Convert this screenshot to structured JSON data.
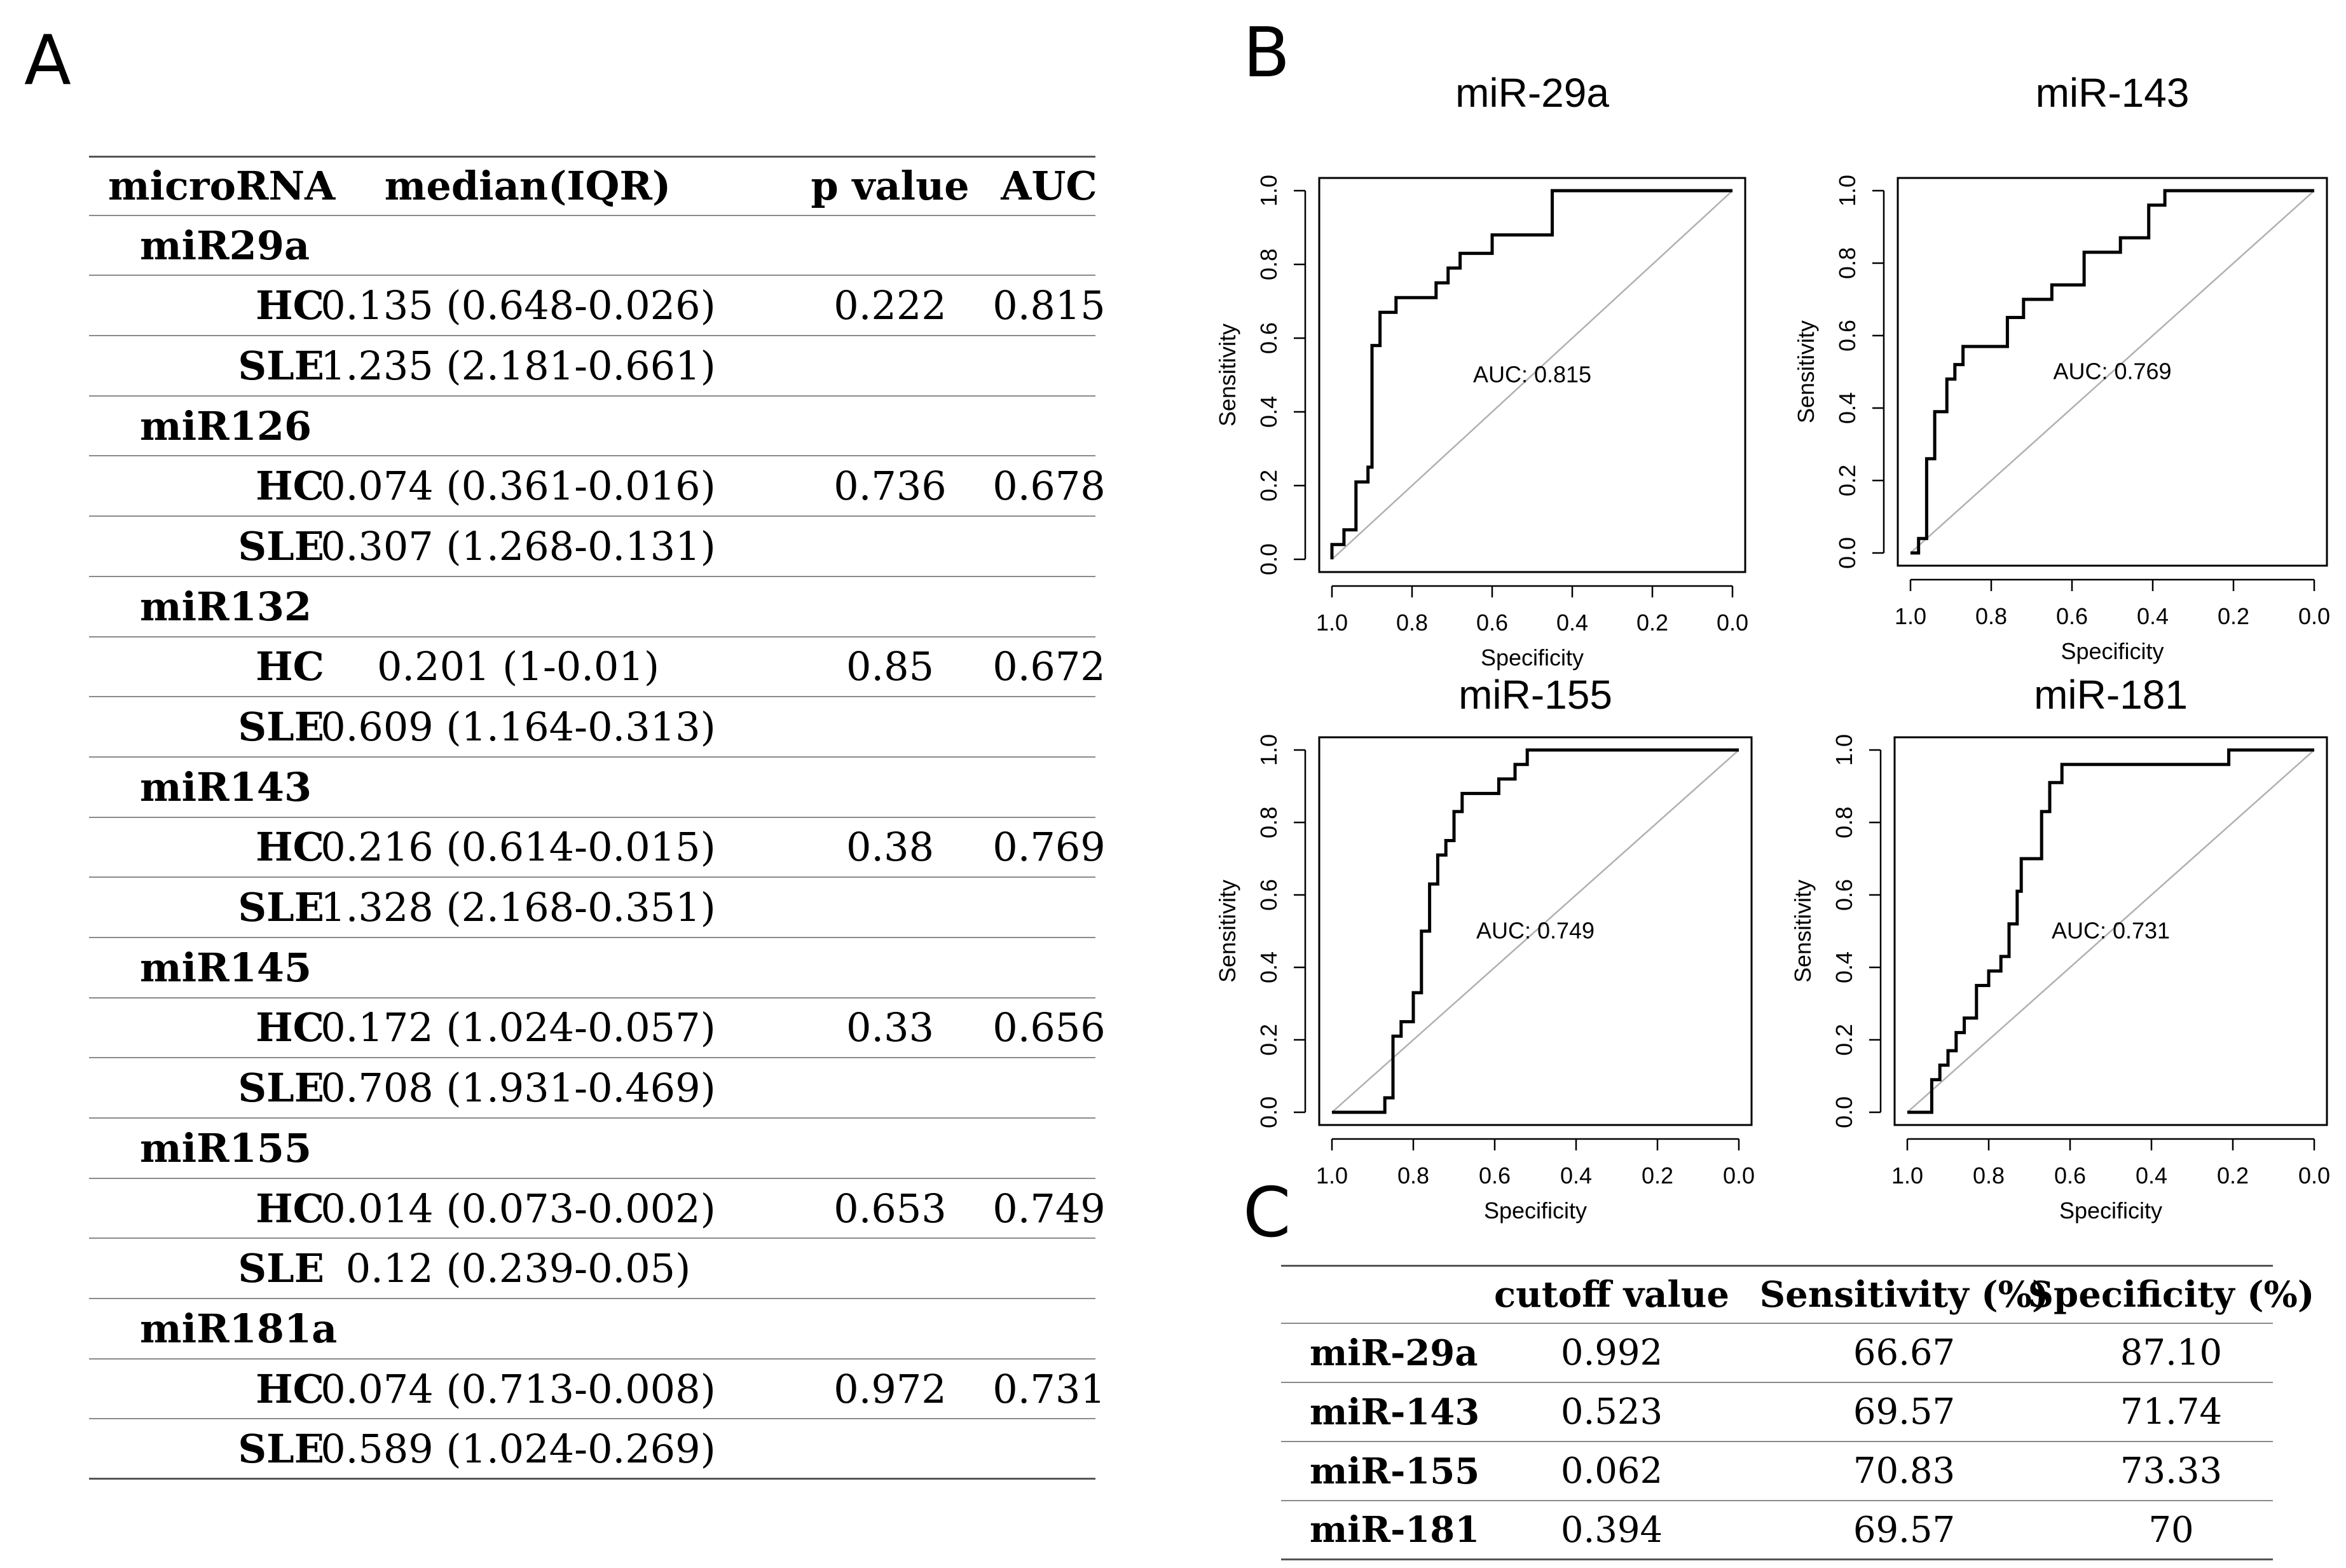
{
  "panels": {
    "a": "A",
    "b": "B",
    "c": "C"
  },
  "table_a": {
    "headers": [
      "microRNA",
      "median(IQR)",
      "p value",
      "AUC"
    ],
    "groups": [
      {
        "name": "miR29a",
        "rows": [
          {
            "label": "HC",
            "median": "0.135 (0.648-0.026)",
            "p": "0.222",
            "auc": "0.815"
          },
          {
            "label": "SLE",
            "median": "1.235 (2.181-0.661)",
            "p": "",
            "auc": ""
          }
        ]
      },
      {
        "name": "miR126",
        "rows": [
          {
            "label": "HC",
            "median": "0.074 (0.361-0.016)",
            "p": "0.736",
            "auc": "0.678"
          },
          {
            "label": "SLE",
            "median": "0.307 (1.268-0.131)",
            "p": "",
            "auc": ""
          }
        ]
      },
      {
        "name": "miR132",
        "rows": [
          {
            "label": "HC",
            "median": "0.201 (1-0.01)",
            "p": "0.85",
            "auc": "0.672"
          },
          {
            "label": "SLE",
            "median": "0.609 (1.164-0.313)",
            "p": "",
            "auc": ""
          }
        ]
      },
      {
        "name": "miR143",
        "rows": [
          {
            "label": "HC",
            "median": "0.216 (0.614-0.015)",
            "p": "0.38",
            "auc": "0.769"
          },
          {
            "label": "SLE",
            "median": "1.328 (2.168-0.351)",
            "p": "",
            "auc": ""
          }
        ]
      },
      {
        "name": "miR145",
        "rows": [
          {
            "label": "HC",
            "median": "0.172 (1.024-0.057)",
            "p": "0.33",
            "auc": "0.656"
          },
          {
            "label": "SLE",
            "median": "0.708 (1.931-0.469)",
            "p": "",
            "auc": ""
          }
        ]
      },
      {
        "name": "miR155",
        "rows": [
          {
            "label": "HC",
            "median": "0.014 (0.073-0.002)",
            "p": "0.653",
            "auc": "0.749"
          },
          {
            "label": "SLE",
            "median": "0.12 (0.239-0.05)",
            "p": "",
            "auc": ""
          }
        ]
      },
      {
        "name": "miR181a",
        "rows": [
          {
            "label": "HC",
            "median": "0.074 (0.713-0.008)",
            "p": "0.972",
            "auc": "0.731"
          },
          {
            "label": "SLE",
            "median": "0.589 (1.024-0.269)",
            "p": "",
            "auc": ""
          }
        ]
      }
    ]
  },
  "chart_data": [
    {
      "type": "line",
      "title": "miR-29a",
      "xlabel": "Specificity",
      "ylabel": "Sensitivity",
      "xlim": [
        1.0,
        0.0
      ],
      "ylim": [
        0.0,
        1.0
      ],
      "xticks": [
        "1.0",
        "0.8",
        "0.6",
        "0.4",
        "0.2",
        "0.0"
      ],
      "yticks": [
        "0.0",
        "0.2",
        "0.4",
        "0.6",
        "0.8",
        "1.0"
      ],
      "annotation": "AUC: 0.815",
      "series": [
        {
          "name": "ROC",
          "specificity": [
            1.0,
            1.0,
            0.97,
            0.97,
            0.94,
            0.94,
            0.91,
            0.91,
            0.9,
            0.9,
            0.88,
            0.88,
            0.84,
            0.84,
            0.74,
            0.74,
            0.71,
            0.71,
            0.68,
            0.68,
            0.6,
            0.6,
            0.45,
            0.45,
            0.0
          ],
          "sensitivity": [
            0.0,
            0.04,
            0.04,
            0.08,
            0.08,
            0.21,
            0.21,
            0.25,
            0.25,
            0.58,
            0.58,
            0.67,
            0.67,
            0.71,
            0.71,
            0.75,
            0.75,
            0.79,
            0.79,
            0.83,
            0.83,
            0.88,
            0.88,
            1.0,
            1.0
          ]
        }
      ]
    },
    {
      "type": "line",
      "title": "miR-143",
      "xlabel": "Specificity",
      "ylabel": "Sensitivity",
      "xlim": [
        1.0,
        0.0
      ],
      "ylim": [
        0.0,
        1.0
      ],
      "xticks": [
        "1.0",
        "0.8",
        "0.6",
        "0.4",
        "0.2",
        "0.0"
      ],
      "yticks": [
        "0.0",
        "0.2",
        "0.4",
        "0.6",
        "0.8",
        "1.0"
      ],
      "annotation": "AUC: 0.769",
      "series": [
        {
          "name": "ROC",
          "specificity": [
            1.0,
            0.98,
            0.98,
            0.96,
            0.96,
            0.94,
            0.94,
            0.91,
            0.91,
            0.89,
            0.89,
            0.87,
            0.87,
            0.76,
            0.76,
            0.72,
            0.72,
            0.65,
            0.65,
            0.57,
            0.57,
            0.48,
            0.48,
            0.41,
            0.41,
            0.37,
            0.37,
            0.0
          ],
          "sensitivity": [
            0.0,
            0.0,
            0.04,
            0.04,
            0.26,
            0.26,
            0.39,
            0.39,
            0.48,
            0.48,
            0.52,
            0.52,
            0.57,
            0.57,
            0.65,
            0.65,
            0.7,
            0.7,
            0.74,
            0.74,
            0.83,
            0.83,
            0.87,
            0.87,
            0.96,
            0.96,
            1.0,
            1.0
          ]
        }
      ]
    },
    {
      "type": "line",
      "title": "miR-155",
      "xlabel": "Specificity",
      "ylabel": "Sensitivity",
      "xlim": [
        1.0,
        0.0
      ],
      "ylim": [
        0.0,
        1.0
      ],
      "xticks": [
        "1.0",
        "0.8",
        "0.6",
        "0.4",
        "0.2",
        "0.0"
      ],
      "yticks": [
        "0.0",
        "0.2",
        "0.4",
        "0.6",
        "0.8",
        "1.0"
      ],
      "annotation": "AUC: 0.749",
      "series": [
        {
          "name": "ROC",
          "specificity": [
            1.0,
            0.87,
            0.87,
            0.85,
            0.85,
            0.83,
            0.83,
            0.8,
            0.8,
            0.78,
            0.78,
            0.76,
            0.76,
            0.74,
            0.74,
            0.72,
            0.72,
            0.7,
            0.7,
            0.68,
            0.68,
            0.65,
            0.65,
            0.59,
            0.59,
            0.55,
            0.55,
            0.52,
            0.52,
            0.0
          ],
          "sensitivity": [
            0.0,
            0.0,
            0.04,
            0.04,
            0.21,
            0.21,
            0.25,
            0.25,
            0.33,
            0.33,
            0.5,
            0.5,
            0.63,
            0.63,
            0.71,
            0.71,
            0.75,
            0.75,
            0.83,
            0.83,
            0.88,
            0.88,
            0.88,
            0.88,
            0.92,
            0.92,
            0.96,
            0.96,
            1.0,
            1.0
          ]
        }
      ]
    },
    {
      "type": "line",
      "title": "miR-181",
      "xlabel": "Specificity",
      "ylabel": "Sensitivity",
      "xlim": [
        1.0,
        0.0
      ],
      "ylim": [
        0.0,
        1.0
      ],
      "xticks": [
        "1.0",
        "0.8",
        "0.6",
        "0.4",
        "0.2",
        "0.0"
      ],
      "yticks": [
        "0.0",
        "0.2",
        "0.4",
        "0.6",
        "0.8",
        "1.0"
      ],
      "annotation": "AUC: 0.731",
      "series": [
        {
          "name": "ROC",
          "specificity": [
            1.0,
            0.94,
            0.94,
            0.92,
            0.92,
            0.9,
            0.9,
            0.88,
            0.88,
            0.86,
            0.86,
            0.83,
            0.83,
            0.8,
            0.8,
            0.77,
            0.77,
            0.75,
            0.75,
            0.73,
            0.73,
            0.72,
            0.72,
            0.7,
            0.7,
            0.67,
            0.67,
            0.65,
            0.65,
            0.62,
            0.62,
            0.59,
            0.59,
            0.21,
            0.21,
            0.0
          ],
          "sensitivity": [
            0.0,
            0.0,
            0.09,
            0.09,
            0.13,
            0.13,
            0.17,
            0.17,
            0.22,
            0.22,
            0.26,
            0.26,
            0.35,
            0.35,
            0.39,
            0.39,
            0.43,
            0.43,
            0.52,
            0.52,
            0.61,
            0.61,
            0.7,
            0.7,
            0.7,
            0.7,
            0.83,
            0.83,
            0.91,
            0.91,
            0.96,
            0.96,
            0.96,
            0.96,
            1.0,
            1.0
          ]
        }
      ]
    }
  ],
  "table_c": {
    "headers": [
      "",
      "cutoff value",
      "Sensitivity (%)",
      "Specificity (%)"
    ],
    "rows": [
      {
        "name": "miR-29a",
        "cutoff": "0.992",
        "sens": "66.67",
        "spec": "87.10"
      },
      {
        "name": "miR-143",
        "cutoff": "0.523",
        "sens": "69.57",
        "spec": "71.74"
      },
      {
        "name": "miR-155",
        "cutoff": "0.062",
        "sens": "70.83",
        "spec": "73.33"
      },
      {
        "name": "miR-181",
        "cutoff": "0.394",
        "sens": "69.57",
        "spec": "70"
      }
    ]
  },
  "colors": {
    "curve": "#000000",
    "diagonal": "#b0b0b0",
    "rule": "#8a8a8a"
  }
}
